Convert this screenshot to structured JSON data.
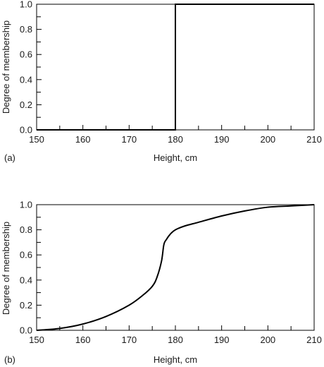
{
  "chart_data": [
    {
      "type": "line",
      "panel_label": "(a)",
      "xlabel": "Height, cm",
      "ylabel": "Degree of membership",
      "xlim": [
        150,
        210
      ],
      "ylim": [
        0,
        1
      ],
      "x_ticks": [
        "150",
        "160",
        "170",
        "180",
        "190",
        "200",
        "210"
      ],
      "y_ticks": [
        "0.0",
        "0.2",
        "0.4",
        "0.6",
        "0.8",
        "1.0"
      ],
      "grid": false,
      "series": [
        {
          "x": [
            150,
            180,
            180,
            210
          ],
          "y": [
            0,
            0,
            1,
            1
          ]
        }
      ],
      "line_color": "#000000"
    },
    {
      "type": "line",
      "panel_label": "(b)",
      "xlabel": "Height, cm",
      "ylabel": "Degree of membership",
      "xlim": [
        150,
        210
      ],
      "ylim": [
        0,
        1
      ],
      "x_ticks": [
        "150",
        "160",
        "170",
        "180",
        "190",
        "200",
        "210"
      ],
      "y_ticks": [
        "0.0",
        "0.2",
        "0.4",
        "0.6",
        "0.8",
        "1.0"
      ],
      "grid": false,
      "series": [
        {
          "x": [
            150,
            155,
            160,
            165,
            170,
            173,
            175,
            176,
            177,
            177.5,
            178,
            179,
            180,
            182,
            185,
            190,
            195,
            200,
            205,
            210
          ],
          "y": [
            0,
            0.015,
            0.05,
            0.11,
            0.2,
            0.28,
            0.35,
            0.42,
            0.55,
            0.68,
            0.72,
            0.77,
            0.8,
            0.83,
            0.86,
            0.91,
            0.95,
            0.98,
            0.99,
            1.0
          ]
        }
      ],
      "line_color": "#000000"
    }
  ]
}
